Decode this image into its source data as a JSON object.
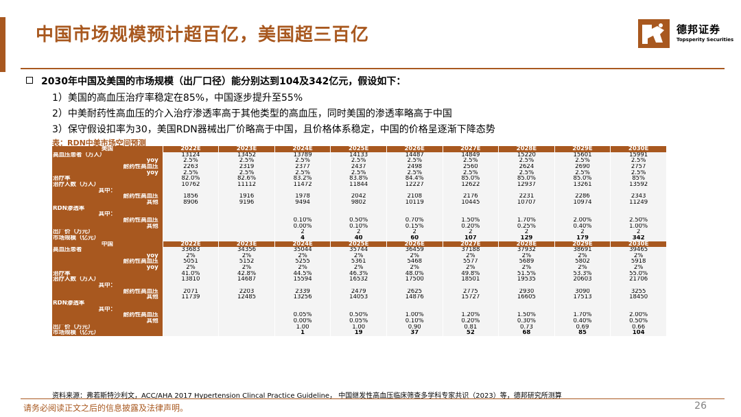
{
  "page": {
    "title": "中国市场规模预计超百亿，美国超三百亿",
    "headline": "2030年中国及美国的市场规模（出厂口径）能分别达到104及342亿元，假设如下：",
    "assumptions": [
      "1）美国的高血压治疗率稳定在85%，中国逐步提升至55%",
      "2）中美耐药性高血压的介入治疗渗透率高于其他类型的高血压，同时美国的渗透率略高于中国",
      "3）保守假设扣率为30，美国RDN器械出厂价略高于中国，且价格体系稳定，中国的价格呈逐渐下降态势"
    ],
    "table_caption": "表：RDN中美市场空间预测",
    "source": "资料来源：弗若斯特沙利文，ACC/AHA 2017 Hypertension Clincal Practice Guideline， 中国继发性高血压临床筛查多学科专家共识（2023）等，德邦研究所测算",
    "disclaimer": "请务必阅读正文之后的信息披露及法律声明。",
    "page_number": "26"
  },
  "logo": {
    "name_cn": "德邦证券",
    "name_en": "Topsperity Securities",
    "brand_color": "#a8581f"
  },
  "table": {
    "columns": [
      "2022E",
      "2023E",
      "2024E",
      "2025E",
      "2026E",
      "2027E",
      "2028E",
      "2029E",
      "2030E"
    ],
    "rows": [
      {
        "style": "hdr",
        "label": "美国",
        "values": [
          "2022E",
          "2023E",
          "2024E",
          "2025E",
          "2026E",
          "2027E",
          "2028E",
          "2029E",
          "2030E"
        ]
      },
      {
        "style": "left",
        "label": "高血压患者（万人）",
        "values": [
          "13124",
          "13452",
          "13789",
          "14133",
          "14487",
          "14849",
          "15220",
          "15601",
          "15991"
        ]
      },
      {
        "style": "ind",
        "label": "yoy",
        "values": [
          "2.5%",
          "2.5%",
          "2.5%",
          "2.5%",
          "2.5%",
          "2.5%",
          "2.5%",
          "2.5%",
          "2.5%"
        ]
      },
      {
        "style": "ind",
        "label": "耐药性高血压",
        "values": [
          "2263",
          "2319",
          "2377",
          "2437",
          "2498",
          "2560",
          "2624",
          "2690",
          "2757"
        ]
      },
      {
        "style": "ind",
        "label": "yoy",
        "values": [
          "2.5%",
          "2.5%",
          "2.5%",
          "2.5%",
          "2.5%",
          "2.5%",
          "2.5%",
          "2.5%",
          "2.5%"
        ]
      },
      {
        "style": "left",
        "label": "治疗率",
        "values": [
          "82.0%",
          "82.6%",
          "83.2%",
          "83.8%",
          "84.4%",
          "85.0%",
          "85.0%",
          "85.0%",
          "85%"
        ]
      },
      {
        "style": "left",
        "label": "治疗人数（万人）",
        "values": [
          "10762",
          "11112",
          "11472",
          "11844",
          "12227",
          "12622",
          "12937",
          "13261",
          "13592"
        ]
      },
      {
        "style": "ctr",
        "label": "其中：",
        "values": [
          "",
          "",
          "",
          "",
          "",
          "",
          "",
          "",
          ""
        ]
      },
      {
        "style": "ind",
        "label": "耐药性高血压",
        "values": [
          "1856",
          "1916",
          "1978",
          "2042",
          "2108",
          "2176",
          "2231",
          "2286",
          "2343"
        ]
      },
      {
        "style": "ind",
        "label": "其他",
        "values": [
          "8906",
          "9196",
          "9494",
          "9802",
          "10119",
          "10445",
          "10707",
          "10974",
          "11249"
        ]
      },
      {
        "style": "left",
        "label": "RDN渗透率",
        "values": [
          "",
          "",
          "",
          "",
          "",
          "",
          "",
          "",
          ""
        ]
      },
      {
        "style": "ctr",
        "label": "其中：",
        "values": [
          "",
          "",
          "",
          "",
          "",
          "",
          "",
          "",
          ""
        ]
      },
      {
        "style": "ind",
        "label": "耐药性高血压",
        "values": [
          "",
          "",
          "0.10%",
          "0.50%",
          "0.70%",
          "1.50%",
          "1.70%",
          "2.00%",
          "2.50%"
        ]
      },
      {
        "style": "ind",
        "label": "其他",
        "values": [
          "",
          "",
          "0.00%",
          "0.10%",
          "0.15%",
          "0.20%",
          "0.25%",
          "0.40%",
          "1.00%"
        ]
      },
      {
        "style": "left",
        "label": "出厂价（万元）",
        "values": [
          "",
          "",
          "2",
          "2",
          "2",
          "2",
          "2",
          "2",
          "2"
        ]
      },
      {
        "style": "left total",
        "label": "市场规模（亿元）",
        "values": [
          "",
          "",
          "4",
          "40",
          "60",
          "107",
          "129",
          "179",
          "342"
        ]
      },
      {
        "style": "hdr",
        "label": "中国",
        "values": [
          "2022E",
          "2023E",
          "2024E",
          "2025E",
          "2026E",
          "2027E",
          "2028E",
          "2029E",
          "2030E"
        ]
      },
      {
        "style": "left",
        "label": "高血压患者",
        "values": [
          "33683",
          "34356",
          "35044",
          "35744",
          "36459",
          "37188",
          "37932",
          "38691",
          "39465"
        ]
      },
      {
        "style": "ind",
        "label": "yoy",
        "values": [
          "2%",
          "2%",
          "2%",
          "2%",
          "2%",
          "2%",
          "2%",
          "2%",
          "2%"
        ]
      },
      {
        "style": "ind",
        "label": "耐药性高血压",
        "values": [
          "5051",
          "5152",
          "5255",
          "5361",
          "5468",
          "5577",
          "5689",
          "5802",
          "5918"
        ]
      },
      {
        "style": "ind",
        "label": "yoy",
        "values": [
          "2%",
          "2%",
          "2%",
          "2%",
          "2%",
          "2%",
          "2%",
          "2%",
          "2%"
        ]
      },
      {
        "style": "left",
        "label": "治疗率",
        "values": [
          "41.0%",
          "42.8%",
          "44.5%",
          "46.3%",
          "48.0%",
          "49.8%",
          "51.5%",
          "53.3%",
          "55.0%"
        ]
      },
      {
        "style": "left",
        "label": "治疗人数（万人）",
        "values": [
          "13810",
          "14687",
          "15594",
          "16532",
          "17500",
          "18501",
          "19535",
          "20603",
          "21706"
        ]
      },
      {
        "style": "ctr",
        "label": "其中：",
        "values": [
          "",
          "",
          "",
          "",
          "",
          "",
          "",
          "",
          ""
        ]
      },
      {
        "style": "ind",
        "label": "耐药性高血压",
        "values": [
          "2071",
          "2203",
          "2339",
          "2479",
          "2625",
          "2775",
          "2930",
          "3090",
          "3255"
        ]
      },
      {
        "style": "ind",
        "label": "其他",
        "values": [
          "11739",
          "12485",
          "13256",
          "14053",
          "14876",
          "15727",
          "16605",
          "17513",
          "18450"
        ]
      },
      {
        "style": "left",
        "label": "RDN渗透率",
        "values": [
          "",
          "",
          "",
          "",
          "",
          "",
          "",
          "",
          ""
        ]
      },
      {
        "style": "ctr",
        "label": "其中：",
        "values": [
          "",
          "",
          "",
          "",
          "",
          "",
          "",
          "",
          ""
        ]
      },
      {
        "style": "ind",
        "label": "耐药性高血压",
        "values": [
          "",
          "",
          "0.05%",
          "0.50%",
          "1.00%",
          "1.20%",
          "1.50%",
          "1.70%",
          "2.00%"
        ]
      },
      {
        "style": "ind",
        "label": "其他",
        "values": [
          "",
          "",
          "0.00%",
          "0.05%",
          "0.10%",
          "0.20%",
          "0.30%",
          "0.40%",
          "0.50%"
        ]
      },
      {
        "style": "left",
        "label": "出厂价（万元）",
        "values": [
          "",
          "",
          "1.00",
          "1.00",
          "0.90",
          "0.81",
          "0.73",
          "0.69",
          "0.66"
        ]
      },
      {
        "style": "left total",
        "label": "市场规模（亿元）",
        "values": [
          "",
          "",
          "1",
          "19",
          "37",
          "52",
          "68",
          "85",
          "104"
        ]
      }
    ]
  }
}
